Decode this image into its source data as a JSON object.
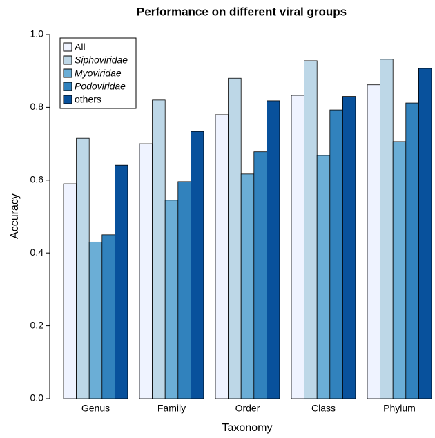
{
  "chart_data": {
    "type": "bar",
    "title": "Performance on different viral groups",
    "x_label": "Taxonomy",
    "y_label": "Accuracy",
    "categories": [
      "Genus",
      "Family",
      "Order",
      "Class",
      "Phylum"
    ],
    "series": [
      {
        "name": "All",
        "color": "#eff3ff",
        "font_style": "normal",
        "values": [
          0.59,
          0.7,
          0.78,
          0.833,
          0.862
        ]
      },
      {
        "name": "Siphoviridae",
        "color": "#bdd7e7",
        "font_style": "italic",
        "values": [
          0.715,
          0.82,
          0.88,
          0.928,
          0.932
        ]
      },
      {
        "name": "Myoviridae",
        "color": "#6baed6",
        "font_style": "italic",
        "values": [
          0.43,
          0.545,
          0.617,
          0.668,
          0.706
        ]
      },
      {
        "name": "Podoviridae",
        "color": "#3182bd",
        "font_style": "italic",
        "values": [
          0.45,
          0.596,
          0.678,
          0.793,
          0.812
        ]
      },
      {
        "name": "others",
        "color": "#08519c",
        "font_style": "normal",
        "values": [
          0.641,
          0.734,
          0.818,
          0.83,
          0.907
        ]
      }
    ],
    "ylim": [
      0,
      1.0
    ],
    "yticks": [
      {
        "value": 0,
        "label": "0.0"
      },
      0.2,
      0.4,
      0.6,
      0.8,
      {
        "value": 1.0,
        "label": "1.0"
      }
    ],
    "legend": "top-left"
  }
}
